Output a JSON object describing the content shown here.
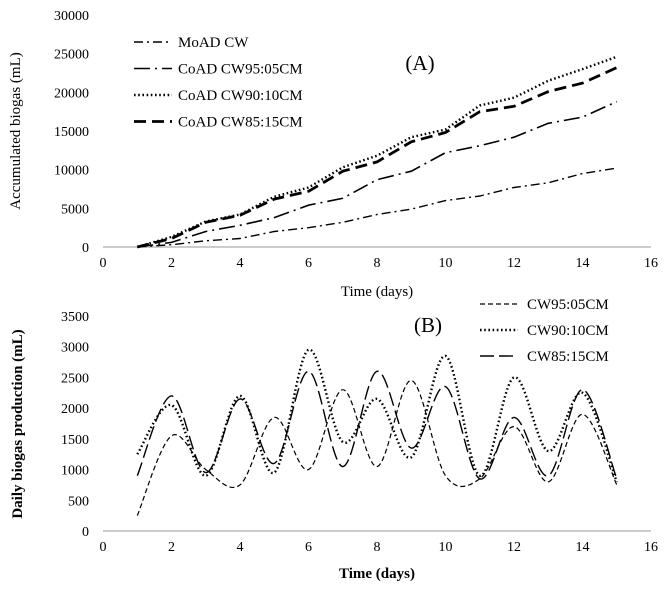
{
  "chart_data": [
    {
      "type": "line",
      "panel_label": "(A)",
      "xlabel": "Time (days)",
      "ylabel": "Accumulated biogas (mL)",
      "xlim": [
        0,
        16
      ],
      "ylim": [
        0,
        30000
      ],
      "xticks": [
        "0",
        "2",
        "4",
        "6",
        "8",
        "10",
        "12",
        "14",
        "16"
      ],
      "yticks": [
        "0",
        "5000",
        "10000",
        "15000",
        "20000",
        "25000",
        "30000"
      ],
      "legend_position": "top-left",
      "grid": false,
      "x": [
        1,
        2,
        3,
        4,
        5,
        6,
        7,
        8,
        9,
        10,
        11,
        12,
        13,
        14,
        15
      ],
      "series": [
        {
          "name": "MoAD CW",
          "dash": "dash-dot",
          "values": [
            0,
            300,
            800,
            1100,
            2000,
            2500,
            3200,
            4200,
            4900,
            6000,
            6600,
            7700,
            8300,
            9500,
            10200
          ]
        },
        {
          "name": "CoAD CW95:05CM",
          "dash": "long-dash-dot",
          "values": [
            0,
            600,
            2000,
            2800,
            3800,
            5400,
            6300,
            8700,
            9800,
            12200,
            13100,
            14200,
            16000,
            16800,
            18800
          ]
        },
        {
          "name": "CoAD CW90:10CM",
          "dash": "dotted",
          "values": [
            0,
            1300,
            3300,
            4200,
            6500,
            7700,
            10300,
            11800,
            14200,
            15200,
            18300,
            19300,
            21500,
            23000,
            24600
          ]
        },
        {
          "name": "CoAD CW85:15CM",
          "dash": "dashed",
          "values": [
            0,
            1100,
            3200,
            4100,
            6200,
            7200,
            9800,
            11000,
            13600,
            14800,
            17500,
            18200,
            20100,
            21200,
            23200
          ]
        }
      ]
    },
    {
      "type": "line",
      "panel_label": "(B)",
      "xlabel": "Time (days)",
      "ylabel": "Daily biogas production (mL)",
      "xlim": [
        0,
        16
      ],
      "ylim": [
        0,
        3500
      ],
      "xticks": [
        "0",
        "2",
        "4",
        "6",
        "8",
        "10",
        "12",
        "14",
        "16"
      ],
      "yticks": [
        "0",
        "500",
        "1000",
        "1500",
        "2000",
        "2500",
        "3000",
        "3500"
      ],
      "legend_position": "top-right",
      "grid": false,
      "x": [
        1,
        2,
        3,
        4,
        5,
        6,
        7,
        8,
        9,
        10,
        11,
        12,
        13,
        14,
        15
      ],
      "series": [
        {
          "name": "CW95:05CM",
          "dash": "short-dash",
          "values": [
            250,
            1550,
            1000,
            750,
            1850,
            1000,
            2300,
            1050,
            2450,
            900,
            850,
            1700,
            800,
            1900,
            750
          ]
        },
        {
          "name": "CW90:10CM",
          "dash": "dotted",
          "values": [
            1250,
            2050,
            900,
            2200,
            950,
            2950,
            1450,
            2150,
            1200,
            2850,
            900,
            2500,
            1300,
            2250,
            800
          ]
        },
        {
          "name": "CW85:15CM",
          "dash": "long-dash",
          "values": [
            900,
            2200,
            950,
            2150,
            1100,
            2600,
            1050,
            2600,
            1350,
            2350,
            850,
            1850,
            900,
            2300,
            850
          ]
        }
      ]
    }
  ]
}
